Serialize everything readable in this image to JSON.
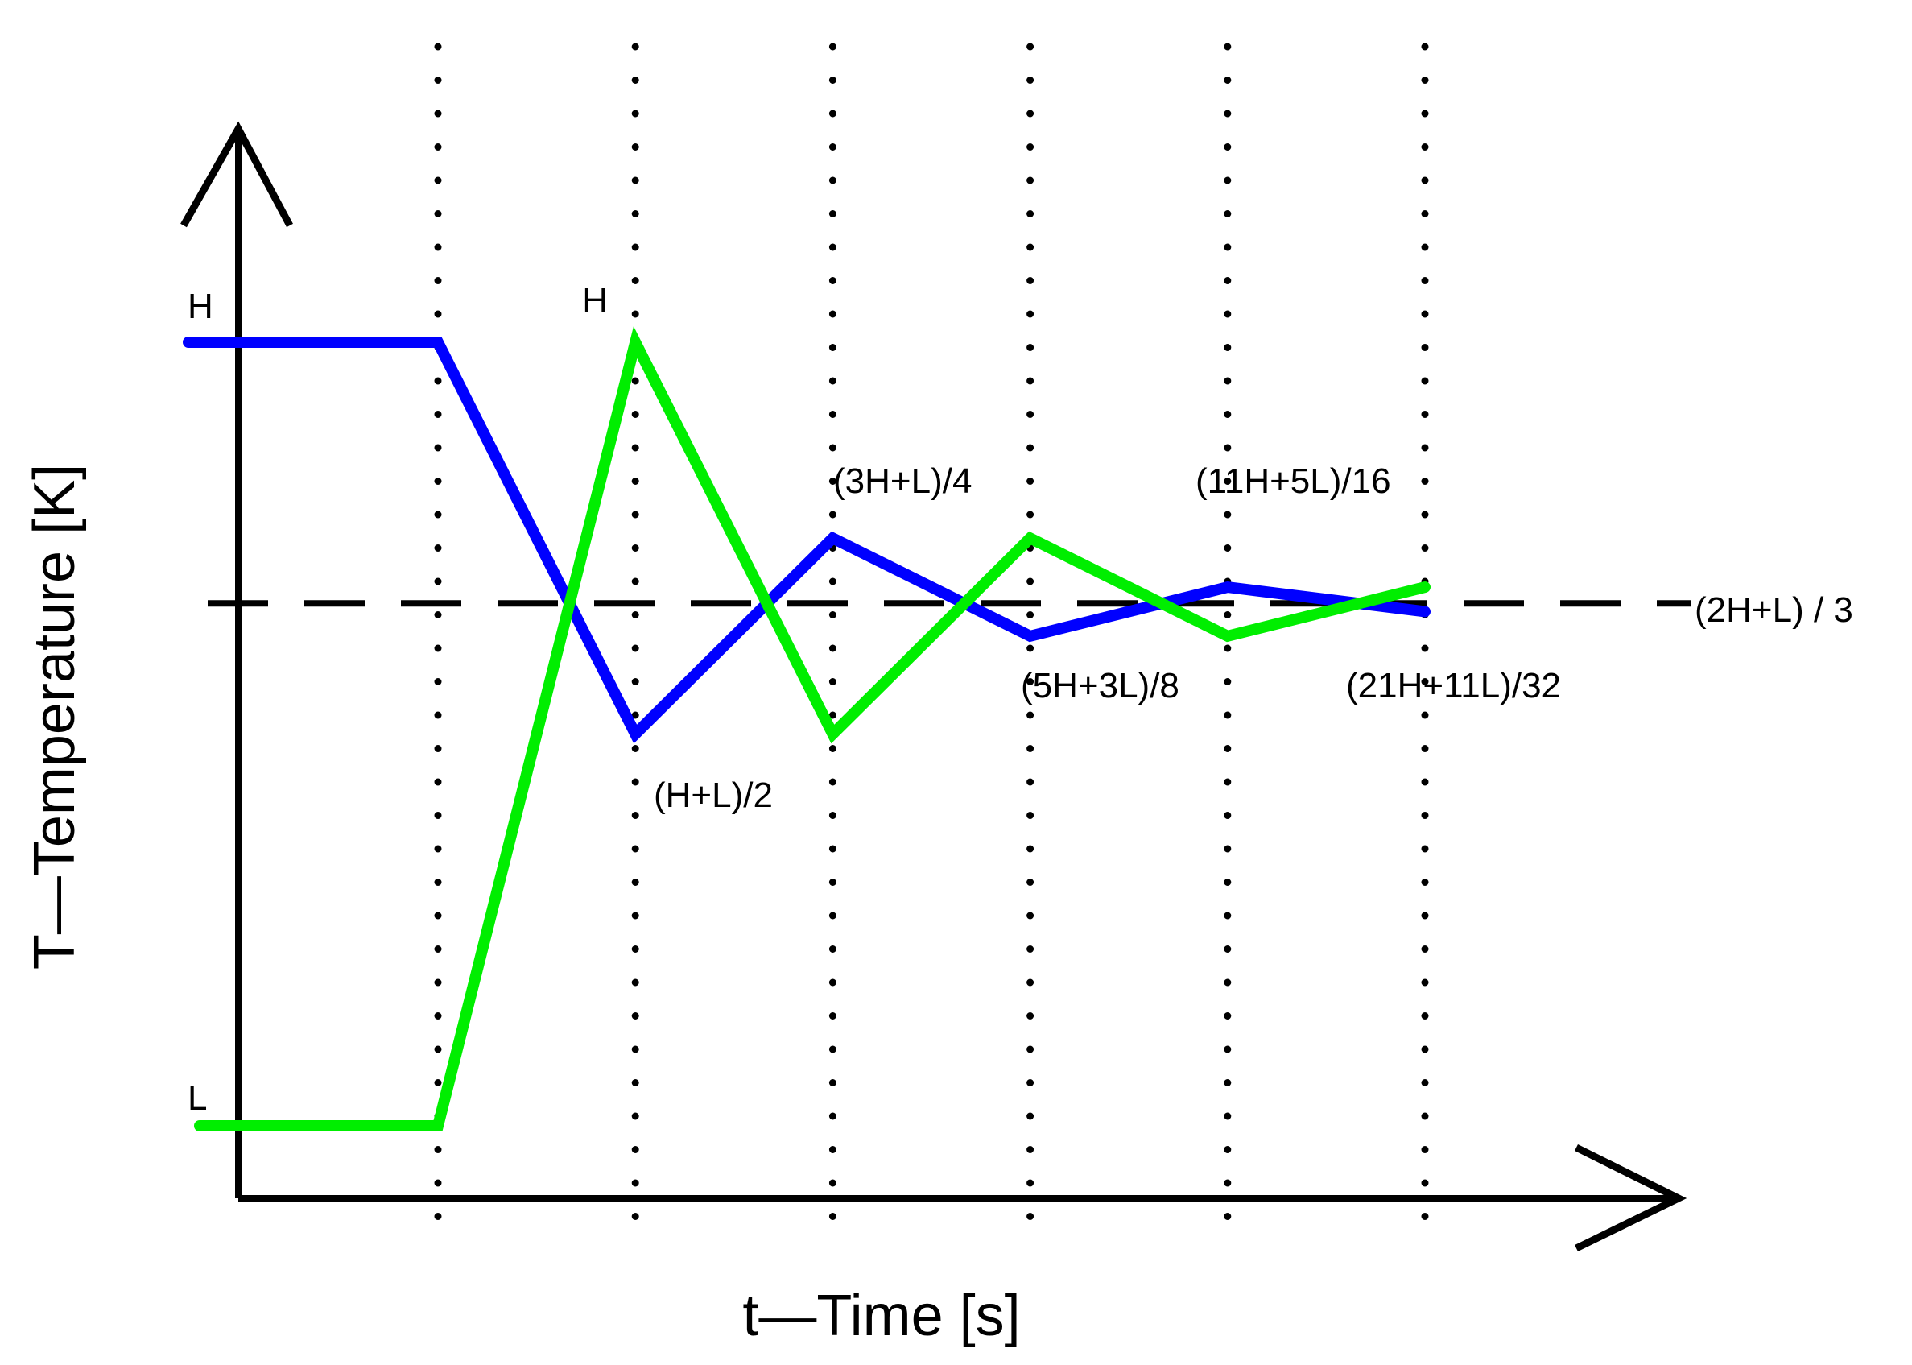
{
  "chart_data": {
    "type": "line",
    "xlabel": "t—Time [s]",
    "ylabel": "T—Temperature [K]",
    "y_levels": {
      "H": 1.0,
      "L": 0.0
    },
    "x": [
      0,
      1,
      2,
      3,
      4,
      5,
      6
    ],
    "xlim": [
      -0.25,
      6.2
    ],
    "ylim": [
      0,
      1.35
    ],
    "grid": "vertical dotted lines at x = 1, 2, 3, 4, 5, 6",
    "series": [
      {
        "color": "#0000ff",
        "values": [
          1.0,
          1.0,
          0.5,
          0.75,
          0.625,
          0.6875,
          0.65625
        ]
      },
      {
        "color": "#00ee00",
        "values": [
          0.0,
          0.0,
          1.0,
          0.5,
          0.75,
          0.625,
          0.6875
        ]
      }
    ],
    "reference_line": {
      "value": 0.6667,
      "label": "(2H+L) / 3",
      "style": "dashed",
      "color": "#000000"
    },
    "y_tick_labels": [
      "H",
      "L"
    ],
    "annotations": [
      "H",
      "(H+L)/2",
      "(3H+L)/4",
      "(5H+3L)/8",
      "(11H+5L)/16",
      "(21H+11L)/32"
    ]
  }
}
